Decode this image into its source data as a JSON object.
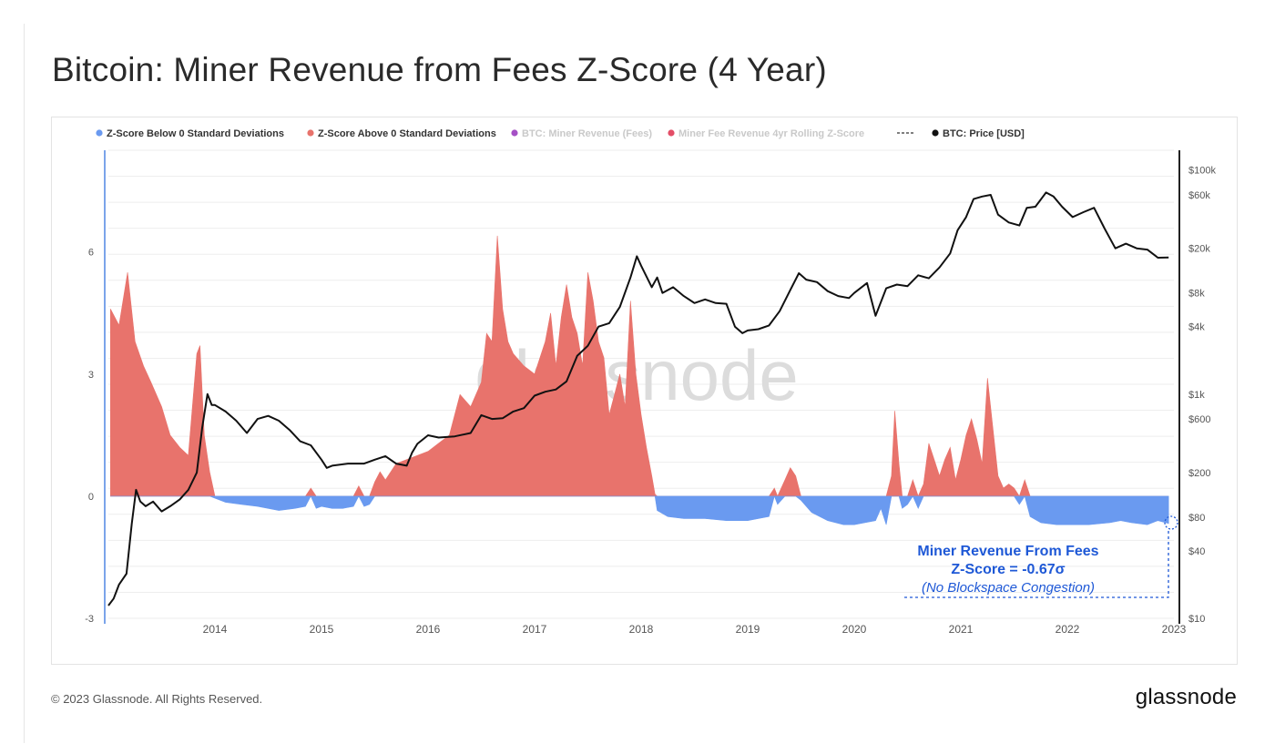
{
  "page": {
    "title": "Bitcoin: Miner Revenue from Fees Z-Score (4 Year)",
    "copyright": "© 2023 Glassnode. All Rights Reserved.",
    "logo": "glassnode",
    "watermark": "glassnode"
  },
  "colors": {
    "above": "#e8736c",
    "below": "#6a9af0",
    "price": "#111111",
    "fees_legend": "#9b3dbf",
    "zscore_legend": "#e03b56",
    "annotation": "#1e58d6",
    "left_axis": "#7ba4ea"
  },
  "legend": [
    {
      "label": "Z-Score Below 0 Standard Deviations",
      "color": "#6a9af0",
      "marker": "dot",
      "muted": false
    },
    {
      "label": "Z-Score Above 0 Standard Deviations",
      "color": "#e8736c",
      "marker": "dot",
      "muted": false
    },
    {
      "label": "BTC: Miner Revenue (Fees)",
      "color": "#9b3dbf",
      "marker": "dot",
      "muted": true
    },
    {
      "label": "Miner Fee Revenue 4yr Rolling Z-Score",
      "color": "#e03b56",
      "marker": "dot",
      "muted": true
    },
    {
      "label": "",
      "color": "#555555",
      "marker": "dash",
      "muted": false
    },
    {
      "label": "BTC: Price [USD]",
      "color": "#111111",
      "marker": "dot",
      "muted": false
    }
  ],
  "annotation": {
    "line1": "Miner Revenue From Fees",
    "line2": "Z-Score = -0.67σ",
    "line3": "(No Blockspace Congestion)"
  },
  "chart_data": {
    "type": "area",
    "x_axis": {
      "range": [
        "2013-01",
        "2023-01"
      ],
      "ticks": [
        "2014",
        "2015",
        "2016",
        "2017",
        "2018",
        "2019",
        "2020",
        "2021",
        "2022",
        "2023"
      ]
    },
    "y_left": {
      "range": [
        -3,
        8.5
      ],
      "ticks": [
        "6",
        "3",
        "0",
        "-3"
      ],
      "tick_values": [
        6,
        3,
        0,
        -3
      ]
    },
    "y_right": {
      "scale": "log",
      "range": [
        10,
        150000
      ],
      "ticks": [
        "$100k",
        "$60k",
        "$20k",
        "$8k",
        "$4k",
        "$1k",
        "$600",
        "$200",
        "$80",
        "$40",
        "$10"
      ],
      "tick_values": [
        100000,
        60000,
        20000,
        8000,
        4000,
        1000,
        600,
        200,
        80,
        40,
        10
      ]
    },
    "grid": true,
    "legend_position": "top",
    "series": [
      {
        "name": "Miner Fee Revenue 4yr Rolling Z-Score",
        "axis": "left",
        "points": [
          [
            2013.02,
            4.6
          ],
          [
            2013.1,
            4.2
          ],
          [
            2013.18,
            5.5
          ],
          [
            2013.25,
            3.8
          ],
          [
            2013.33,
            3.2
          ],
          [
            2013.4,
            2.8
          ],
          [
            2013.5,
            2.2
          ],
          [
            2013.58,
            1.5
          ],
          [
            2013.67,
            1.2
          ],
          [
            2013.75,
            1.0
          ],
          [
            2013.83,
            3.5
          ],
          [
            2013.86,
            3.7
          ],
          [
            2013.9,
            1.5
          ],
          [
            2013.95,
            0.6
          ],
          [
            2014.0,
            -0.05
          ],
          [
            2014.1,
            -0.15
          ],
          [
            2014.25,
            -0.2
          ],
          [
            2014.4,
            -0.25
          ],
          [
            2014.5,
            -0.3
          ],
          [
            2014.6,
            -0.35
          ],
          [
            2014.75,
            -0.3
          ],
          [
            2014.85,
            -0.25
          ],
          [
            2014.9,
            0.2
          ],
          [
            2014.95,
            -0.3
          ],
          [
            2015.0,
            -0.25
          ],
          [
            2015.1,
            -0.3
          ],
          [
            2015.2,
            -0.3
          ],
          [
            2015.3,
            -0.25
          ],
          [
            2015.35,
            0.25
          ],
          [
            2015.4,
            -0.25
          ],
          [
            2015.45,
            -0.2
          ],
          [
            2015.5,
            0.35
          ],
          [
            2015.55,
            0.6
          ],
          [
            2015.6,
            0.4
          ],
          [
            2015.7,
            0.8
          ],
          [
            2015.8,
            0.9
          ],
          [
            2015.9,
            1.0
          ],
          [
            2016.0,
            1.1
          ],
          [
            2016.1,
            1.3
          ],
          [
            2016.2,
            1.5
          ],
          [
            2016.3,
            2.5
          ],
          [
            2016.4,
            2.2
          ],
          [
            2016.5,
            2.8
          ],
          [
            2016.55,
            4.0
          ],
          [
            2016.6,
            3.8
          ],
          [
            2016.65,
            6.4
          ],
          [
            2016.7,
            4.6
          ],
          [
            2016.75,
            3.8
          ],
          [
            2016.8,
            3.5
          ],
          [
            2016.9,
            3.2
          ],
          [
            2017.0,
            3.0
          ],
          [
            2017.1,
            3.8
          ],
          [
            2017.15,
            4.5
          ],
          [
            2017.2,
            3.2
          ],
          [
            2017.25,
            4.4
          ],
          [
            2017.3,
            5.2
          ],
          [
            2017.35,
            4.4
          ],
          [
            2017.4,
            4.0
          ],
          [
            2017.45,
            3.2
          ],
          [
            2017.5,
            5.5
          ],
          [
            2017.55,
            4.8
          ],
          [
            2017.6,
            3.8
          ],
          [
            2017.65,
            3.4
          ],
          [
            2017.7,
            2.0
          ],
          [
            2017.75,
            2.5
          ],
          [
            2017.8,
            3.0
          ],
          [
            2017.85,
            2.2
          ],
          [
            2017.9,
            4.8
          ],
          [
            2017.95,
            3.0
          ],
          [
            2018.0,
            2.0
          ],
          [
            2018.05,
            1.2
          ],
          [
            2018.1,
            0.5
          ],
          [
            2018.13,
            0.05
          ],
          [
            2018.15,
            -0.35
          ],
          [
            2018.25,
            -0.5
          ],
          [
            2018.4,
            -0.55
          ],
          [
            2018.6,
            -0.55
          ],
          [
            2018.8,
            -0.6
          ],
          [
            2019.0,
            -0.6
          ],
          [
            2019.1,
            -0.55
          ],
          [
            2019.2,
            -0.5
          ],
          [
            2019.25,
            0.2
          ],
          [
            2019.28,
            -0.2
          ],
          [
            2019.35,
            0.4
          ],
          [
            2019.4,
            0.7
          ],
          [
            2019.45,
            0.5
          ],
          [
            2019.5,
            -0.1
          ],
          [
            2019.6,
            -0.4
          ],
          [
            2019.75,
            -0.6
          ],
          [
            2019.9,
            -0.7
          ],
          [
            2020.0,
            -0.7
          ],
          [
            2020.1,
            -0.65
          ],
          [
            2020.2,
            -0.6
          ],
          [
            2020.25,
            -0.3
          ],
          [
            2020.3,
            -0.7
          ],
          [
            2020.35,
            0.5
          ],
          [
            2020.38,
            2.1
          ],
          [
            2020.42,
            0.8
          ],
          [
            2020.45,
            -0.3
          ],
          [
            2020.5,
            -0.2
          ],
          [
            2020.55,
            0.4
          ],
          [
            2020.6,
            -0.3
          ],
          [
            2020.65,
            0.3
          ],
          [
            2020.7,
            1.3
          ],
          [
            2020.75,
            0.9
          ],
          [
            2020.8,
            0.5
          ],
          [
            2020.85,
            0.9
          ],
          [
            2020.9,
            1.2
          ],
          [
            2020.95,
            0.4
          ],
          [
            2021.0,
            0.9
          ],
          [
            2021.05,
            1.5
          ],
          [
            2021.1,
            1.9
          ],
          [
            2021.15,
            1.4
          ],
          [
            2021.2,
            0.8
          ],
          [
            2021.25,
            2.9
          ],
          [
            2021.3,
            1.7
          ],
          [
            2021.35,
            0.5
          ],
          [
            2021.4,
            0.2
          ],
          [
            2021.45,
            0.3
          ],
          [
            2021.5,
            0.2
          ],
          [
            2021.55,
            -0.2
          ],
          [
            2021.6,
            0.4
          ],
          [
            2021.65,
            -0.5
          ],
          [
            2021.75,
            -0.65
          ],
          [
            2021.9,
            -0.7
          ],
          [
            2022.0,
            -0.7
          ],
          [
            2022.2,
            -0.7
          ],
          [
            2022.4,
            -0.65
          ],
          [
            2022.5,
            -0.6
          ],
          [
            2022.6,
            -0.65
          ],
          [
            2022.75,
            -0.7
          ],
          [
            2022.85,
            -0.6
          ],
          [
            2022.95,
            -0.67
          ]
        ]
      },
      {
        "name": "BTC: Price [USD]",
        "axis": "right",
        "points": [
          [
            2013.0,
            13
          ],
          [
            2013.05,
            15
          ],
          [
            2013.1,
            20
          ],
          [
            2013.17,
            25
          ],
          [
            2013.22,
            70
          ],
          [
            2013.26,
            140
          ],
          [
            2013.3,
            110
          ],
          [
            2013.35,
            100
          ],
          [
            2013.42,
            110
          ],
          [
            2013.5,
            90
          ],
          [
            2013.58,
            100
          ],
          [
            2013.67,
            115
          ],
          [
            2013.75,
            140
          ],
          [
            2013.83,
            200
          ],
          [
            2013.88,
            500
          ],
          [
            2013.93,
            1000
          ],
          [
            2013.97,
            800
          ],
          [
            2014.0,
            800
          ],
          [
            2014.1,
            700
          ],
          [
            2014.2,
            580
          ],
          [
            2014.3,
            450
          ],
          [
            2014.4,
            600
          ],
          [
            2014.5,
            640
          ],
          [
            2014.6,
            580
          ],
          [
            2014.7,
            480
          ],
          [
            2014.8,
            380
          ],
          [
            2014.9,
            350
          ],
          [
            2015.0,
            260
          ],
          [
            2015.05,
            220
          ],
          [
            2015.1,
            230
          ],
          [
            2015.25,
            240
          ],
          [
            2015.4,
            240
          ],
          [
            2015.5,
            260
          ],
          [
            2015.6,
            280
          ],
          [
            2015.7,
            240
          ],
          [
            2015.8,
            230
          ],
          [
            2015.85,
            300
          ],
          [
            2015.9,
            360
          ],
          [
            2016.0,
            430
          ],
          [
            2016.1,
            410
          ],
          [
            2016.25,
            420
          ],
          [
            2016.4,
            450
          ],
          [
            2016.5,
            650
          ],
          [
            2016.6,
            600
          ],
          [
            2016.7,
            610
          ],
          [
            2016.8,
            700
          ],
          [
            2016.9,
            750
          ],
          [
            2017.0,
            970
          ],
          [
            2017.1,
            1050
          ],
          [
            2017.2,
            1100
          ],
          [
            2017.3,
            1300
          ],
          [
            2017.4,
            2200
          ],
          [
            2017.5,
            2700
          ],
          [
            2017.6,
            4000
          ],
          [
            2017.7,
            4300
          ],
          [
            2017.8,
            6000
          ],
          [
            2017.9,
            11000
          ],
          [
            2017.96,
            17000
          ],
          [
            2018.0,
            14000
          ],
          [
            2018.1,
            9000
          ],
          [
            2018.15,
            11000
          ],
          [
            2018.2,
            8000
          ],
          [
            2018.3,
            9000
          ],
          [
            2018.4,
            7500
          ],
          [
            2018.5,
            6500
          ],
          [
            2018.6,
            7000
          ],
          [
            2018.7,
            6500
          ],
          [
            2018.8,
            6400
          ],
          [
            2018.88,
            4000
          ],
          [
            2018.95,
            3500
          ],
          [
            2019.0,
            3700
          ],
          [
            2019.1,
            3800
          ],
          [
            2019.2,
            4100
          ],
          [
            2019.3,
            5500
          ],
          [
            2019.4,
            8500
          ],
          [
            2019.48,
            12000
          ],
          [
            2019.55,
            10500
          ],
          [
            2019.65,
            10000
          ],
          [
            2019.75,
            8300
          ],
          [
            2019.85,
            7500
          ],
          [
            2019.95,
            7200
          ],
          [
            2020.0,
            8000
          ],
          [
            2020.12,
            9800
          ],
          [
            2020.2,
            5000
          ],
          [
            2020.3,
            8800
          ],
          [
            2020.4,
            9500
          ],
          [
            2020.5,
            9200
          ],
          [
            2020.6,
            11500
          ],
          [
            2020.7,
            10800
          ],
          [
            2020.8,
            13500
          ],
          [
            2020.9,
            18000
          ],
          [
            2020.97,
            29000
          ],
          [
            2021.05,
            38000
          ],
          [
            2021.12,
            55000
          ],
          [
            2021.2,
            58000
          ],
          [
            2021.28,
            60000
          ],
          [
            2021.35,
            40000
          ],
          [
            2021.45,
            34000
          ],
          [
            2021.55,
            32000
          ],
          [
            2021.62,
            46000
          ],
          [
            2021.7,
            47000
          ],
          [
            2021.8,
            63000
          ],
          [
            2021.87,
            58000
          ],
          [
            2021.95,
            47000
          ],
          [
            2022.05,
            38000
          ],
          [
            2022.15,
            42000
          ],
          [
            2022.25,
            46000
          ],
          [
            2022.35,
            30000
          ],
          [
            2022.45,
            20000
          ],
          [
            2022.55,
            22000
          ],
          [
            2022.65,
            20000
          ],
          [
            2022.75,
            19500
          ],
          [
            2022.85,
            16500
          ],
          [
            2022.95,
            16600
          ]
        ]
      }
    ]
  }
}
